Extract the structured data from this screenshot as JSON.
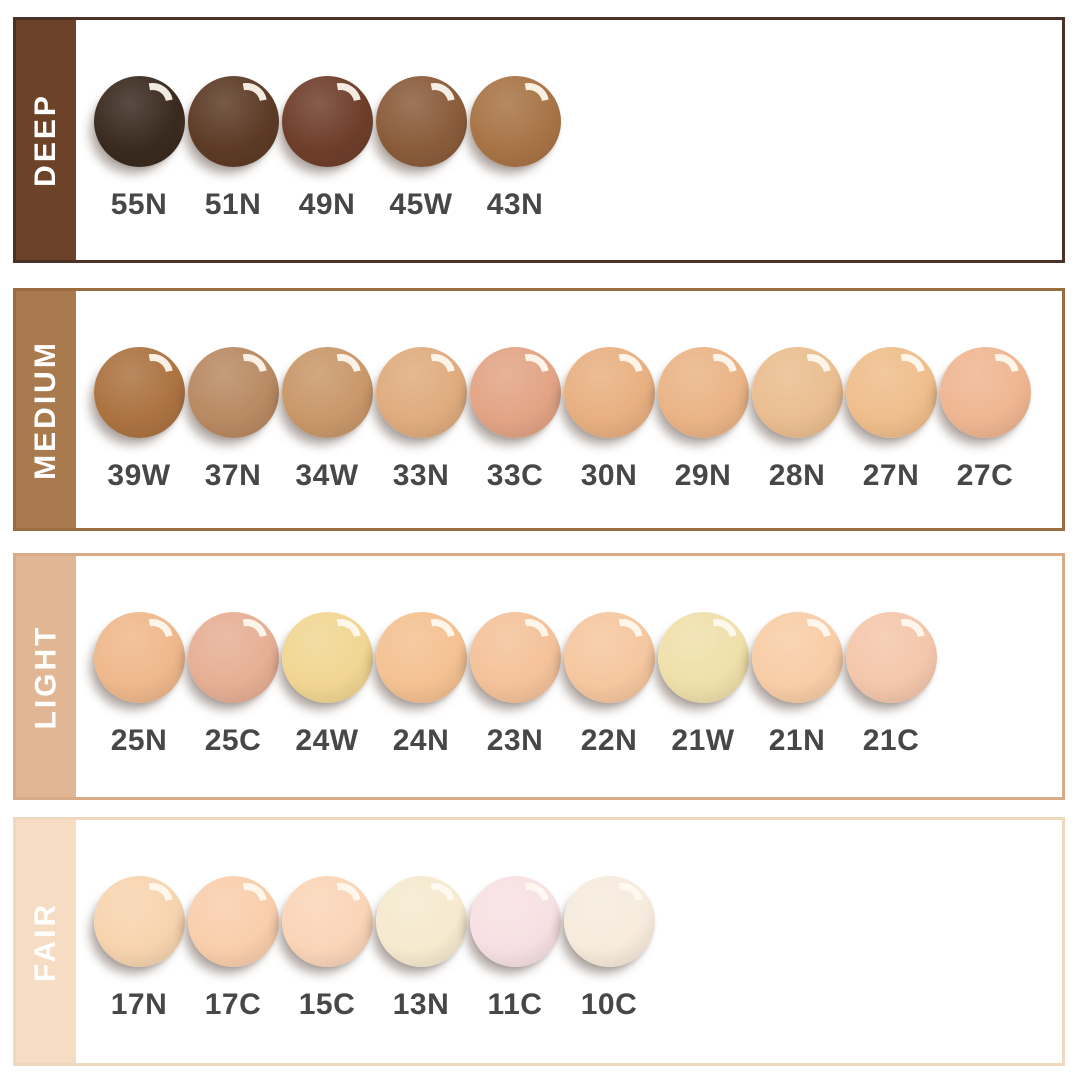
{
  "page": {
    "background_color": "#ffffff",
    "shade_code_text_color": "#474747",
    "sidebar_text_color": "#ffffff"
  },
  "rows": [
    {
      "label": "DEEP",
      "sidebar_color": "#6C4328",
      "border_color": "#4B3126",
      "swatches": [
        {
          "code": "55N",
          "color": "#3A2A1F"
        },
        {
          "code": "51N",
          "color": "#5D3B26"
        },
        {
          "code": "49N",
          "color": "#6F3E2B"
        },
        {
          "code": "45W",
          "color": "#8A5C3B"
        },
        {
          "code": "43N",
          "color": "#A87446"
        }
      ]
    },
    {
      "label": "MEDIUM",
      "sidebar_color": "#A87A4E",
      "border_color": "#9C6C41",
      "swatches": [
        {
          "code": "39W",
          "color": "#AC7341"
        },
        {
          "code": "37N",
          "color": "#B98A63"
        },
        {
          "code": "34W",
          "color": "#C9986A"
        },
        {
          "code": "33N",
          "color": "#DFAC7E"
        },
        {
          "code": "33C",
          "color": "#E2A485"
        },
        {
          "code": "30N",
          "color": "#E8B081"
        },
        {
          "code": "29N",
          "color": "#EAB486"
        },
        {
          "code": "28N",
          "color": "#EABE90"
        },
        {
          "code": "27N",
          "color": "#EFBE8C"
        },
        {
          "code": "27C",
          "color": "#EFB692"
        }
      ]
    },
    {
      "label": "LIGHT",
      "sidebar_color": "#E1B694",
      "border_color": "#D8AB88",
      "swatches": [
        {
          "code": "25N",
          "color": "#EFB88C"
        },
        {
          "code": "25C",
          "color": "#E6AF94"
        },
        {
          "code": "24W",
          "color": "#F1D693"
        },
        {
          "code": "24N",
          "color": "#F4C192"
        },
        {
          "code": "23N",
          "color": "#F4C29A"
        },
        {
          "code": "22N",
          "color": "#F6C7A0"
        },
        {
          "code": "21W",
          "color": "#EFE0AA"
        },
        {
          "code": "21N",
          "color": "#F8CDA7"
        },
        {
          "code": "21C",
          "color": "#F4C7AB"
        }
      ]
    },
    {
      "label": "FAIR",
      "sidebar_color": "#F5DCC3",
      "border_color": "#F0D8BF",
      "swatches": [
        {
          "code": "17N",
          "color": "#F7D4AF"
        },
        {
          "code": "17C",
          "color": "#F9CEAC"
        },
        {
          "code": "15C",
          "color": "#FAD5B8"
        },
        {
          "code": "13N",
          "color": "#F6EACF"
        },
        {
          "code": "11C",
          "color": "#F7E0E3"
        },
        {
          "code": "10C",
          "color": "#F6EBDC"
        }
      ]
    }
  ]
}
